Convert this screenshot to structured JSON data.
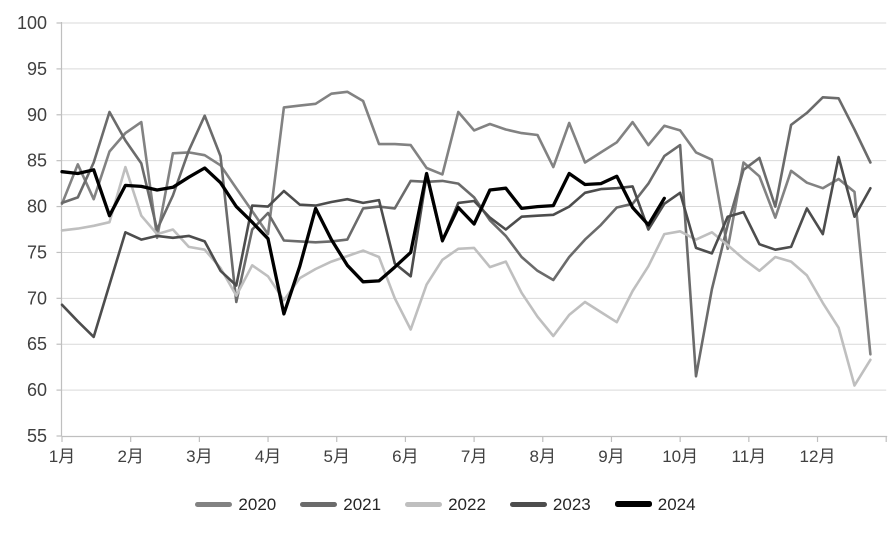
{
  "chart_data": {
    "type": "line",
    "title": "",
    "xlabel": "",
    "ylabel": "",
    "x_axis": {
      "unit": "week-of-year",
      "month_labels": [
        "1月",
        "2月",
        "3月",
        "4月",
        "5月",
        "6月",
        "7月",
        "8月",
        "9月",
        "10月",
        "11月",
        "12月"
      ],
      "weeks_per_year": 52
    },
    "y_axis": {
      "min": 55,
      "max": 100,
      "step": 5,
      "tick_labels": [
        "55",
        "60",
        "65",
        "70",
        "75",
        "80",
        "85",
        "90",
        "95",
        "100"
      ]
    },
    "grid": {
      "horizontal": true,
      "vertical": false,
      "color": "#d9d9d9"
    },
    "axis_color": "#bfbfbf",
    "tick_text_color": "#404040",
    "legend": {
      "position": "bottom",
      "entries": [
        "2020",
        "2021",
        "2022",
        "2023",
        "2024"
      ]
    },
    "series": [
      {
        "name": "2020",
        "color": "#828282",
        "line_width": 2.6,
        "values": [
          80.3,
          84.6,
          80.8,
          86.0,
          88.0,
          89.2,
          76.6,
          85.8,
          85.9,
          85.6,
          84.5,
          82.0,
          79.5,
          77.0,
          90.8,
          91.0,
          91.2,
          92.3,
          92.5,
          91.5,
          86.8,
          86.8,
          86.7,
          84.2,
          83.5,
          90.3,
          88.3,
          89.0,
          88.4,
          88.0,
          87.8,
          84.3,
          89.1,
          84.8,
          85.9,
          87.0,
          89.2,
          86.7,
          88.8,
          88.3,
          85.9,
          85.1,
          75.4,
          84.8,
          83.3,
          78.8,
          83.9,
          82.6,
          82.0,
          83.0,
          81.6,
          63.9
        ]
      },
      {
        "name": "2021",
        "color": "#6b6b6b",
        "line_width": 2.6,
        "values": [
          80.4,
          81.0,
          84.8,
          90.3,
          87.2,
          84.7,
          77.5,
          81.2,
          86.1,
          89.9,
          85.5,
          69.6,
          77.5,
          79.3,
          76.3,
          76.2,
          76.1,
          76.2,
          76.4,
          79.8,
          80.0,
          79.8,
          82.8,
          82.7,
          82.8,
          82.5,
          81.0,
          78.5,
          76.8,
          74.5,
          73.0,
          72.0,
          74.5,
          76.4,
          78.0,
          79.9,
          80.3,
          82.5,
          85.5,
          86.7,
          61.5,
          71.0,
          78.0,
          84.0,
          85.3,
          80.0,
          88.9,
          90.2,
          91.9,
          91.8,
          88.4,
          84.8
        ]
      },
      {
        "name": "2022",
        "color": "#bfbfbf",
        "line_width": 2.6,
        "values": [
          77.4,
          77.6,
          77.9,
          78.3,
          84.3,
          79.0,
          77.0,
          77.5,
          75.6,
          75.3,
          73.3,
          70.3,
          73.6,
          72.4,
          69.8,
          72.2,
          73.2,
          74.0,
          74.6,
          75.2,
          74.5,
          70.0,
          66.6,
          71.5,
          74.2,
          75.4,
          75.5,
          73.4,
          74.0,
          70.6,
          68.0,
          65.9,
          68.2,
          69.6,
          68.5,
          67.4,
          70.8,
          73.5,
          77.0,
          77.3,
          76.4,
          77.2,
          75.8,
          74.3,
          73.0,
          74.5,
          74.0,
          72.5,
          69.5,
          66.8,
          60.5,
          63.3
        ]
      },
      {
        "name": "2023",
        "color": "#4d4d4d",
        "line_width": 2.6,
        "values": [
          69.3,
          67.5,
          65.8,
          71.5,
          77.2,
          76.4,
          76.8,
          76.6,
          76.8,
          76.2,
          73.0,
          71.4,
          80.1,
          80.0,
          81.7,
          80.2,
          80.1,
          80.5,
          80.8,
          80.4,
          80.7,
          73.8,
          72.4,
          83.4,
          76.2,
          80.4,
          80.6,
          78.8,
          77.5,
          78.9,
          79.0,
          79.1,
          80.0,
          81.5,
          81.9,
          82.0,
          82.2,
          77.5,
          80.3,
          81.5,
          75.5,
          74.9,
          78.9,
          79.4,
          75.9,
          75.3,
          75.6,
          79.8,
          77.0,
          85.4,
          78.9,
          82.0
        ]
      },
      {
        "name": "2024",
        "color": "#000000",
        "line_width": 3.3,
        "values": [
          83.8,
          83.6,
          84.0,
          79.0,
          82.3,
          82.2,
          81.8,
          82.1,
          83.2,
          84.2,
          82.6,
          80.0,
          78.3,
          76.5,
          68.3,
          73.5,
          79.8,
          76.4,
          73.6,
          71.8,
          71.9,
          73.4,
          75.0,
          83.6,
          76.3,
          79.9,
          78.1,
          81.8,
          82.0,
          79.8,
          80.0,
          80.1,
          83.6,
          82.4,
          82.5,
          83.3,
          79.9,
          78.0,
          80.9
        ]
      }
    ]
  }
}
